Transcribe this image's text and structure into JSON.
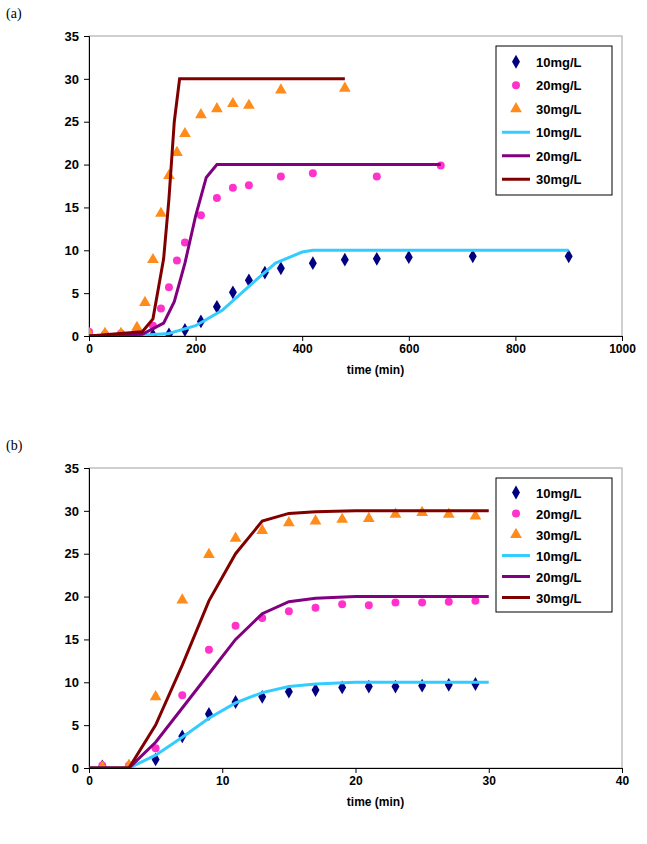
{
  "chart_data": [
    {
      "type": "line",
      "title": "(a)",
      "x_label": "time (min)",
      "xlim": [
        0,
        1000
      ],
      "xticks": [
        0,
        200,
        400,
        600,
        800,
        1000
      ],
      "ylim": [
        0,
        35
      ],
      "yticks": [
        0,
        5,
        10,
        15,
        20,
        25,
        30,
        35
      ],
      "grid": false,
      "legend": "top-right",
      "series": [
        {
          "name": "10mg/L",
          "type": "scatter",
          "marker": "diamond",
          "color": "#000080",
          "x": [
            0,
            120,
            150,
            180,
            210,
            240,
            270,
            300,
            330,
            360,
            420,
            480,
            540,
            600,
            720,
            900
          ],
          "values": [
            0.3,
            0.1,
            0.2,
            0.7,
            1.7,
            3.4,
            5.1,
            6.5,
            7.4,
            7.9,
            8.5,
            8.9,
            9.0,
            9.2,
            9.3,
            9.3
          ]
        },
        {
          "name": "20mg/L",
          "type": "scatter",
          "marker": "circle",
          "color": "#ff33cc",
          "x": [
            0,
            30,
            60,
            90,
            120,
            135,
            150,
            165,
            180,
            210,
            240,
            270,
            300,
            360,
            420,
            540,
            660
          ],
          "values": [
            0.5,
            0.2,
            0.3,
            0.4,
            1.2,
            3.2,
            5.7,
            8.8,
            10.9,
            14.1,
            16.1,
            17.3,
            17.6,
            18.6,
            19.0,
            18.6,
            19.9
          ]
        },
        {
          "name": "30mg/L",
          "type": "scatter",
          "marker": "triangle",
          "color": "#ff8c1a",
          "x": [
            0,
            30,
            60,
            90,
            105,
            120,
            135,
            150,
            165,
            180,
            210,
            240,
            270,
            300,
            360,
            480
          ],
          "values": [
            0.3,
            0.3,
            0.3,
            1.0,
            3.9,
            8.9,
            14.3,
            18.7,
            21.4,
            23.6,
            25.8,
            26.5,
            27.1,
            26.9,
            28.7,
            28.9
          ]
        },
        {
          "name": "10mg/L",
          "type": "line",
          "line_style": "solid",
          "color": "#33ccff",
          "x": [
            0,
            100,
            150,
            200,
            250,
            300,
            350,
            400,
            420,
            500,
            600,
            700,
            800,
            900
          ],
          "values": [
            0,
            0.1,
            0.3,
            1.2,
            3.0,
            5.8,
            8.5,
            9.8,
            10,
            10,
            10,
            10,
            10,
            10
          ]
        },
        {
          "name": "20mg/L",
          "type": "line",
          "line_style": "solid",
          "color": "#800080",
          "x": [
            0,
            100,
            140,
            160,
            180,
            200,
            220,
            240,
            300,
            400,
            500,
            660
          ],
          "values": [
            0,
            0.2,
            1.5,
            4,
            8.5,
            14,
            18.5,
            20,
            20,
            20,
            20,
            20
          ]
        },
        {
          "name": "30mg/L",
          "type": "line",
          "line_style": "solid",
          "color": "#800000",
          "x": [
            0,
            100,
            120,
            140,
            150,
            160,
            170,
            250,
            350,
            480
          ],
          "values": [
            0,
            0.5,
            2,
            9,
            16,
            25,
            30,
            30,
            30,
            30
          ]
        }
      ]
    },
    {
      "type": "line",
      "title": "(b)",
      "x_label": "time (min)",
      "xlim": [
        0,
        40
      ],
      "xticks": [
        0,
        10,
        20,
        30,
        40
      ],
      "ylim": [
        0,
        35
      ],
      "yticks": [
        0,
        5,
        10,
        15,
        20,
        25,
        30,
        35
      ],
      "grid": false,
      "legend": "top-right",
      "series": [
        {
          "name": "10mg/L",
          "type": "scatter",
          "marker": "diamond",
          "color": "#000080",
          "x": [
            1,
            3,
            5,
            7,
            9,
            11,
            13,
            15,
            17,
            19,
            21,
            23,
            25,
            27,
            29
          ],
          "values": [
            0.2,
            0.2,
            1.0,
            3.7,
            6.3,
            7.7,
            8.3,
            8.9,
            9.1,
            9.4,
            9.5,
            9.5,
            9.6,
            9.7,
            9.8
          ]
        },
        {
          "name": "20mg/L",
          "type": "scatter",
          "marker": "circle",
          "color": "#ff33cc",
          "x": [
            1,
            3,
            5,
            7,
            9,
            11,
            13,
            15,
            17,
            19,
            21,
            23,
            25,
            27,
            29
          ],
          "values": [
            0.3,
            0.3,
            2.3,
            8.5,
            13.8,
            16.6,
            17.5,
            18.3,
            18.7,
            19.1,
            19.0,
            19.3,
            19.3,
            19.4,
            19.5
          ]
        },
        {
          "name": "30mg/L",
          "type": "scatter",
          "marker": "triangle",
          "color": "#ff8c1a",
          "x": [
            1,
            3,
            5,
            7,
            9,
            11,
            13,
            15,
            17,
            19,
            21,
            23,
            25,
            27,
            29
          ],
          "values": [
            0.1,
            0.3,
            8.3,
            19.6,
            24.9,
            26.8,
            27.7,
            28.6,
            28.8,
            29.0,
            29.1,
            29.6,
            29.8,
            29.6,
            29.4
          ]
        },
        {
          "name": "10mg/L",
          "type": "line",
          "line_style": "solid",
          "color": "#33ccff",
          "x": [
            0,
            3,
            5,
            7,
            9,
            11,
            13,
            15,
            17,
            20,
            25,
            30
          ],
          "values": [
            0,
            0,
            1.5,
            3.6,
            5.8,
            7.6,
            8.8,
            9.5,
            9.8,
            10,
            10,
            10
          ]
        },
        {
          "name": "20mg/L",
          "type": "line",
          "line_style": "solid",
          "color": "#800080",
          "x": [
            0,
            3,
            5,
            7,
            9,
            11,
            13,
            15,
            17,
            20,
            25,
            30
          ],
          "values": [
            0,
            0,
            3,
            7,
            11,
            15,
            18,
            19.4,
            19.8,
            20,
            20,
            20
          ]
        },
        {
          "name": "30mg/L",
          "type": "line",
          "line_style": "solid",
          "color": "#800000",
          "x": [
            0,
            3,
            5,
            7,
            9,
            11,
            13,
            15,
            17,
            20,
            25,
            30
          ],
          "values": [
            0,
            0,
            5,
            12,
            19.5,
            25,
            28.8,
            29.7,
            29.9,
            30,
            30,
            30
          ]
        }
      ]
    }
  ]
}
